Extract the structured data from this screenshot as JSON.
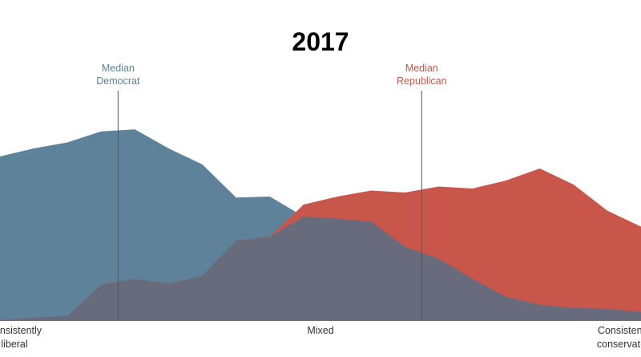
{
  "chart_data": {
    "type": "area",
    "title": "2017",
    "x": [
      0,
      1,
      2,
      3,
      4,
      5,
      6,
      7,
      8,
      9,
      10,
      11,
      12,
      13,
      14,
      15,
      16,
      17,
      18,
      19
    ],
    "xlim": [
      0,
      19
    ],
    "ylim": [
      0,
      100
    ],
    "series": [
      {
        "key": "democrats",
        "color": "#5e8299",
        "values": [
          82,
          86,
          89,
          94.5,
          95.5,
          86,
          78,
          61.5,
          62,
          52,
          51,
          49.5,
          37,
          31,
          21,
          12,
          8,
          6.5,
          6,
          4.5
        ]
      },
      {
        "key": "republicans",
        "color": "#c9564a",
        "values": [
          0.5,
          1.5,
          2.5,
          18,
          21,
          18.5,
          22.5,
          40,
          42,
          58,
          62,
          65,
          64,
          67,
          66,
          70,
          76,
          68,
          55,
          47
        ]
      }
    ],
    "overlap_color": "#676b7c",
    "medians": [
      {
        "key": "democrat",
        "x": 3.5,
        "lines": [
          "Median",
          "Democrat"
        ],
        "color": "#5e8299"
      },
      {
        "key": "republican",
        "x": 12.5,
        "lines": [
          "Median",
          "Republican"
        ],
        "color": "#c9564a"
      }
    ],
    "x_axis_labels": [
      {
        "key": "left",
        "lines": [
          "Consistently",
          "liberal"
        ],
        "position": "left"
      },
      {
        "key": "center",
        "lines": [
          "Mixed"
        ],
        "position": "center"
      },
      {
        "key": "right",
        "lines": [
          "Consistently",
          "conservative"
        ],
        "position": "right"
      }
    ]
  }
}
